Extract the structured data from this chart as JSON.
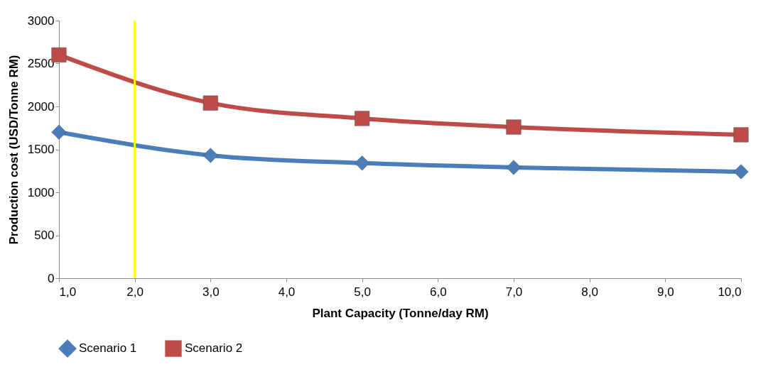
{
  "chart_data": {
    "type": "line",
    "xlabel": "Plant Capacity (Tonne/day RM)",
    "ylabel": "Production cost (USD/Tonne RM)",
    "x": [
      1,
      3,
      5,
      7,
      10
    ],
    "series": [
      {
        "name": "Scenario 1",
        "color": "#4a7ebb",
        "marker": "diamond",
        "values": [
          1700,
          1430,
          1340,
          1290,
          1240
        ]
      },
      {
        "name": "Scenario 2",
        "color": "#be4b48",
        "marker": "square",
        "values": [
          2600,
          2040,
          1860,
          1760,
          1670
        ]
      }
    ],
    "xlim": [
      1,
      10
    ],
    "xticks": [
      {
        "value": 1,
        "label": "1,0"
      },
      {
        "value": 2,
        "label": "2,0"
      },
      {
        "value": 3,
        "label": "3,0"
      },
      {
        "value": 4,
        "label": "4,0"
      },
      {
        "value": 5,
        "label": "5,0"
      },
      {
        "value": 6,
        "label": "6,0"
      },
      {
        "value": 7,
        "label": "7,0"
      },
      {
        "value": 8,
        "label": "8,0"
      },
      {
        "value": 9,
        "label": "9,0"
      },
      {
        "value": 10,
        "label": "10,0"
      }
    ],
    "ylim": [
      0,
      3000
    ],
    "yticks": [
      0,
      500,
      1000,
      1500,
      2000,
      2500,
      3000
    ],
    "ref_lines": [
      {
        "axis": "x",
        "value": 2,
        "color": "#ffff00"
      }
    ],
    "grid": false,
    "legend": "bottom"
  }
}
